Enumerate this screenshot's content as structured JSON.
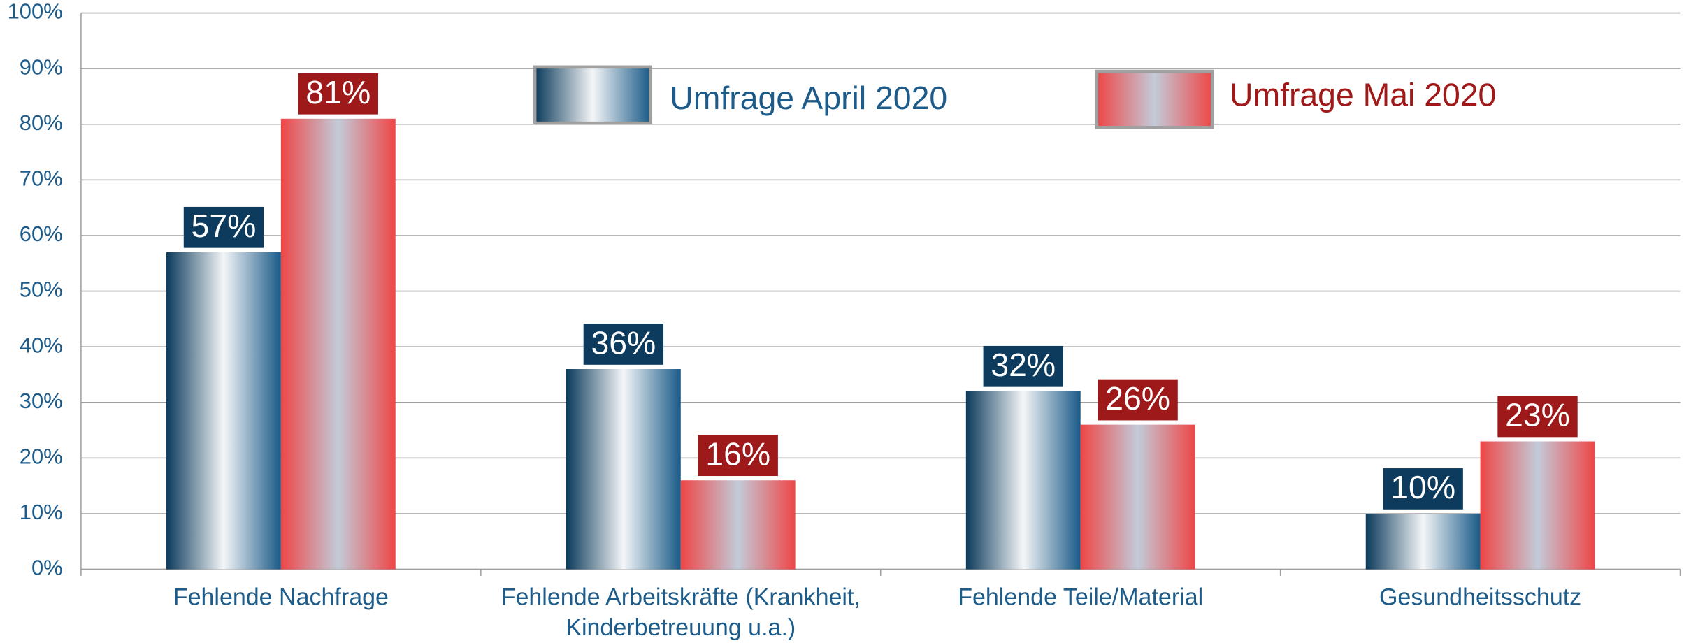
{
  "chart_data": {
    "type": "bar",
    "categories": [
      "Fehlende Nachfrage",
      "Fehlende Arbeitskräfte (Krankheit, Kinderbetreuung u.a.)",
      "Fehlende Teile/Material",
      "Gesundheitsschutz"
    ],
    "series": [
      {
        "name": "Umfrage April 2020",
        "color": "#0d3b5e",
        "values": [
          57,
          36,
          32,
          10
        ],
        "value_labels": [
          "57%",
          "36%",
          "32%",
          "10%"
        ]
      },
      {
        "name": "Umfrage Mai 2020",
        "color": "#9e1a1a",
        "values": [
          81,
          16,
          26,
          23
        ],
        "value_labels": [
          "81%",
          "16%",
          "26%",
          "23%"
        ]
      }
    ],
    "ylim": [
      0,
      100
    ],
    "yticks": [
      {
        "value": 0,
        "label": "0%"
      },
      {
        "value": 10,
        "label": "10%"
      },
      {
        "value": 20,
        "label": "20%"
      },
      {
        "value": 30,
        "label": "30%"
      },
      {
        "value": 40,
        "label": "40%"
      },
      {
        "value": 50,
        "label": "50%"
      },
      {
        "value": 60,
        "label": "60%"
      },
      {
        "value": 70,
        "label": "70%"
      },
      {
        "value": 80,
        "label": "80%"
      },
      {
        "value": 90,
        "label": "90%"
      },
      {
        "value": 100,
        "label": "100%"
      }
    ],
    "grid": true,
    "legend": "top"
  }
}
